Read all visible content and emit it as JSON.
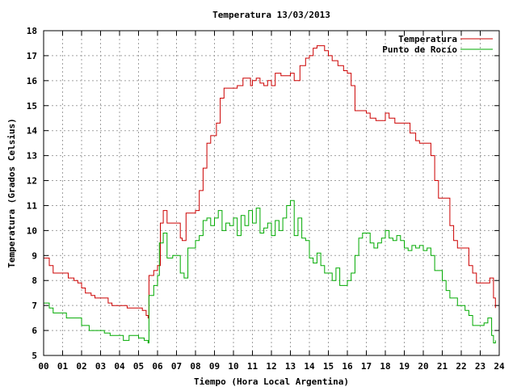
{
  "chart_data": {
    "type": "line",
    "title": "Temperatura 13/03/2013",
    "xlabel": "Tiempo (Hora Local Argentina)",
    "ylabel": "Temperatura (Grados Celsius)",
    "xlim": [
      0,
      24
    ],
    "ylim": [
      5,
      18
    ],
    "x_ticks": [
      {
        "value": 0,
        "label": "00"
      },
      {
        "value": 1,
        "label": "01"
      },
      {
        "value": 2,
        "label": "02"
      },
      {
        "value": 3,
        "label": "03"
      },
      {
        "value": 4,
        "label": "04"
      },
      {
        "value": 5,
        "label": "05"
      },
      {
        "value": 6,
        "label": "06"
      },
      {
        "value": 7,
        "label": "07"
      },
      {
        "value": 8,
        "label": "08"
      },
      {
        "value": 9,
        "label": "09"
      },
      {
        "value": 10,
        "label": "10"
      },
      {
        "value": 11,
        "label": "11"
      },
      {
        "value": 12,
        "label": "12"
      },
      {
        "value": 13,
        "label": "13"
      },
      {
        "value": 14,
        "label": "14"
      },
      {
        "value": 15,
        "label": "15"
      },
      {
        "value": 16,
        "label": "16"
      },
      {
        "value": 17,
        "label": "17"
      },
      {
        "value": 18,
        "label": "18"
      },
      {
        "value": 19,
        "label": "19"
      },
      {
        "value": 20,
        "label": "20"
      },
      {
        "value": 21,
        "label": "21"
      },
      {
        "value": 22,
        "label": "22"
      },
      {
        "value": 23,
        "label": "23"
      },
      {
        "value": 24,
        "label": "24"
      }
    ],
    "y_ticks": [
      {
        "value": 5,
        "label": "5"
      },
      {
        "value": 6,
        "label": "6"
      },
      {
        "value": 7,
        "label": "7"
      },
      {
        "value": 8,
        "label": "8"
      },
      {
        "value": 9,
        "label": "9"
      },
      {
        "value": 10,
        "label": "10"
      },
      {
        "value": 11,
        "label": "11"
      },
      {
        "value": 12,
        "label": "12"
      },
      {
        "value": 13,
        "label": "13"
      },
      {
        "value": 14,
        "label": "14"
      },
      {
        "value": 15,
        "label": "15"
      },
      {
        "value": 16,
        "label": "16"
      },
      {
        "value": 17,
        "label": "17"
      },
      {
        "value": 18,
        "label": "18"
      }
    ],
    "grid": true,
    "legend_position": "top-right",
    "series": [
      {
        "name": "Temperatura",
        "color": "#cc0000",
        "points": [
          [
            0.0,
            8.9
          ],
          [
            0.3,
            8.6
          ],
          [
            0.5,
            8.3
          ],
          [
            1.0,
            8.3
          ],
          [
            1.3,
            8.1
          ],
          [
            1.6,
            8.0
          ],
          [
            1.8,
            7.9
          ],
          [
            2.0,
            7.7
          ],
          [
            2.2,
            7.5
          ],
          [
            2.5,
            7.4
          ],
          [
            2.7,
            7.3
          ],
          [
            3.2,
            7.3
          ],
          [
            3.4,
            7.1
          ],
          [
            3.6,
            7.0
          ],
          [
            4.0,
            7.0
          ],
          [
            4.4,
            6.9
          ],
          [
            5.0,
            6.9
          ],
          [
            5.2,
            6.8
          ],
          [
            5.4,
            6.6
          ],
          [
            5.5,
            6.5
          ],
          [
            5.55,
            8.2
          ],
          [
            5.8,
            8.4
          ],
          [
            6.0,
            8.6
          ],
          [
            6.15,
            10.3
          ],
          [
            6.3,
            10.8
          ],
          [
            6.5,
            10.3
          ],
          [
            7.0,
            10.3
          ],
          [
            7.2,
            9.7
          ],
          [
            7.3,
            9.6
          ],
          [
            7.5,
            10.7
          ],
          [
            8.0,
            10.8
          ],
          [
            8.2,
            11.6
          ],
          [
            8.4,
            12.5
          ],
          [
            8.6,
            13.5
          ],
          [
            8.8,
            13.8
          ],
          [
            9.0,
            13.8
          ],
          [
            9.1,
            14.3
          ],
          [
            9.3,
            15.3
          ],
          [
            9.5,
            15.7
          ],
          [
            10.0,
            15.7
          ],
          [
            10.2,
            15.8
          ],
          [
            10.4,
            15.8
          ],
          [
            10.5,
            16.1
          ],
          [
            10.7,
            16.1
          ],
          [
            10.9,
            15.8
          ],
          [
            11.0,
            16.0
          ],
          [
            11.2,
            16.1
          ],
          [
            11.4,
            15.9
          ],
          [
            11.6,
            15.8
          ],
          [
            11.8,
            16.0
          ],
          [
            12.0,
            15.8
          ],
          [
            12.2,
            16.3
          ],
          [
            12.5,
            16.2
          ],
          [
            13.0,
            16.3
          ],
          [
            13.2,
            16.0
          ],
          [
            13.5,
            16.6
          ],
          [
            13.8,
            16.9
          ],
          [
            14.0,
            17.0
          ],
          [
            14.2,
            17.3
          ],
          [
            14.4,
            17.4
          ],
          [
            14.6,
            17.4
          ],
          [
            14.8,
            17.2
          ],
          [
            15.0,
            17.0
          ],
          [
            15.2,
            16.8
          ],
          [
            15.5,
            16.6
          ],
          [
            15.8,
            16.4
          ],
          [
            16.0,
            16.3
          ],
          [
            16.2,
            15.8
          ],
          [
            16.4,
            14.8
          ],
          [
            17.0,
            14.7
          ],
          [
            17.2,
            14.5
          ],
          [
            17.5,
            14.4
          ],
          [
            18.0,
            14.7
          ],
          [
            18.2,
            14.5
          ],
          [
            18.5,
            14.3
          ],
          [
            19.0,
            14.3
          ],
          [
            19.3,
            13.9
          ],
          [
            19.6,
            13.6
          ],
          [
            19.8,
            13.5
          ],
          [
            20.2,
            13.5
          ],
          [
            20.4,
            13.0
          ],
          [
            20.6,
            12.0
          ],
          [
            20.8,
            11.3
          ],
          [
            21.2,
            11.3
          ],
          [
            21.4,
            10.2
          ],
          [
            21.6,
            9.6
          ],
          [
            21.8,
            9.3
          ],
          [
            22.2,
            9.3
          ],
          [
            22.4,
            8.6
          ],
          [
            22.6,
            8.3
          ],
          [
            22.8,
            7.9
          ],
          [
            23.4,
            7.9
          ],
          [
            23.5,
            8.1
          ],
          [
            23.7,
            7.3
          ],
          [
            23.8,
            6.9
          ]
        ]
      },
      {
        "name": "Punto de Rocío",
        "color": "#00aa00",
        "points": [
          [
            0.0,
            7.1
          ],
          [
            0.3,
            6.9
          ],
          [
            0.5,
            6.7
          ],
          [
            1.0,
            6.7
          ],
          [
            1.2,
            6.5
          ],
          [
            1.8,
            6.5
          ],
          [
            2.0,
            6.2
          ],
          [
            2.4,
            6.0
          ],
          [
            2.8,
            6.0
          ],
          [
            3.2,
            5.9
          ],
          [
            3.5,
            5.8
          ],
          [
            4.0,
            5.8
          ],
          [
            4.2,
            5.6
          ],
          [
            4.5,
            5.8
          ],
          [
            5.0,
            5.7
          ],
          [
            5.3,
            5.6
          ],
          [
            5.5,
            5.5
          ],
          [
            5.55,
            7.4
          ],
          [
            5.8,
            7.8
          ],
          [
            6.0,
            8.2
          ],
          [
            6.1,
            9.5
          ],
          [
            6.3,
            9.9
          ],
          [
            6.5,
            8.9
          ],
          [
            6.8,
            9.0
          ],
          [
            7.0,
            9.0
          ],
          [
            7.2,
            8.3
          ],
          [
            7.4,
            8.1
          ],
          [
            7.6,
            9.3
          ],
          [
            8.0,
            9.6
          ],
          [
            8.2,
            9.8
          ],
          [
            8.4,
            10.4
          ],
          [
            8.6,
            10.5
          ],
          [
            8.8,
            10.2
          ],
          [
            9.0,
            10.5
          ],
          [
            9.2,
            10.8
          ],
          [
            9.4,
            10.0
          ],
          [
            9.6,
            10.3
          ],
          [
            9.8,
            10.2
          ],
          [
            10.0,
            10.5
          ],
          [
            10.2,
            9.8
          ],
          [
            10.4,
            10.6
          ],
          [
            10.6,
            10.2
          ],
          [
            10.8,
            10.8
          ],
          [
            11.0,
            10.3
          ],
          [
            11.2,
            10.9
          ],
          [
            11.4,
            9.9
          ],
          [
            11.6,
            10.1
          ],
          [
            11.8,
            10.3
          ],
          [
            12.0,
            9.8
          ],
          [
            12.2,
            10.4
          ],
          [
            12.4,
            10.0
          ],
          [
            12.6,
            10.5
          ],
          [
            12.8,
            11.0
          ],
          [
            13.0,
            11.2
          ],
          [
            13.2,
            9.8
          ],
          [
            13.4,
            10.5
          ],
          [
            13.6,
            9.7
          ],
          [
            13.8,
            9.6
          ],
          [
            14.0,
            8.9
          ],
          [
            14.2,
            8.7
          ],
          [
            14.4,
            9.1
          ],
          [
            14.6,
            8.6
          ],
          [
            14.8,
            8.3
          ],
          [
            15.0,
            8.3
          ],
          [
            15.2,
            8.0
          ],
          [
            15.4,
            8.5
          ],
          [
            15.6,
            7.8
          ],
          [
            15.8,
            7.8
          ],
          [
            16.0,
            8.0
          ],
          [
            16.2,
            8.3
          ],
          [
            16.4,
            9.0
          ],
          [
            16.6,
            9.7
          ],
          [
            16.8,
            9.9
          ],
          [
            17.0,
            9.9
          ],
          [
            17.2,
            9.5
          ],
          [
            17.4,
            9.3
          ],
          [
            17.6,
            9.5
          ],
          [
            17.8,
            9.7
          ],
          [
            18.0,
            10.0
          ],
          [
            18.2,
            9.7
          ],
          [
            18.4,
            9.6
          ],
          [
            18.6,
            9.8
          ],
          [
            18.8,
            9.6
          ],
          [
            19.0,
            9.3
          ],
          [
            19.2,
            9.2
          ],
          [
            19.4,
            9.4
          ],
          [
            19.6,
            9.3
          ],
          [
            19.8,
            9.4
          ],
          [
            20.0,
            9.2
          ],
          [
            20.2,
            9.3
          ],
          [
            20.4,
            9.0
          ],
          [
            20.6,
            8.4
          ],
          [
            20.8,
            8.4
          ],
          [
            21.0,
            8.0
          ],
          [
            21.2,
            7.6
          ],
          [
            21.4,
            7.3
          ],
          [
            21.6,
            7.3
          ],
          [
            21.8,
            7.0
          ],
          [
            22.0,
            7.0
          ],
          [
            22.2,
            6.8
          ],
          [
            22.4,
            6.6
          ],
          [
            22.6,
            6.2
          ],
          [
            23.0,
            6.2
          ],
          [
            23.2,
            6.3
          ],
          [
            23.4,
            6.5
          ],
          [
            23.6,
            5.8
          ],
          [
            23.7,
            5.5
          ],
          [
            23.8,
            5.6
          ]
        ]
      }
    ]
  }
}
